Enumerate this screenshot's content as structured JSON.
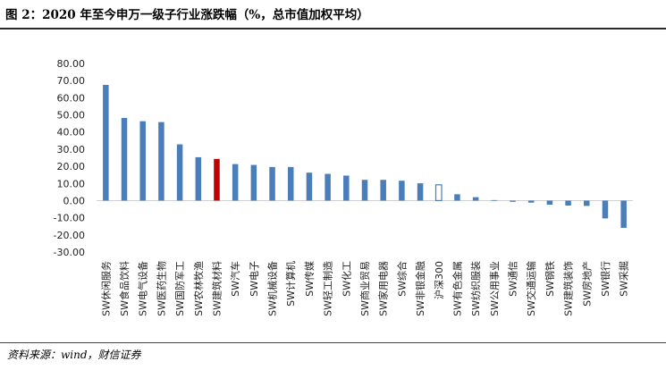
{
  "figure": {
    "title": "图 2：2020 年至今申万一级子行业涨跌幅（%，总市值加权平均）",
    "source": "资料来源：wind，财信证券"
  },
  "colors": {
    "default_bar": "#4a7ebb",
    "highlight_bar": "#c00000",
    "benchmark_outline": "#4a7ebb"
  },
  "chart_data": {
    "type": "bar",
    "title": "",
    "xlabel": "",
    "ylabel": "",
    "ylim": [
      -30,
      80
    ],
    "yticks": [
      "80.00",
      "70.00",
      "60.00",
      "50.00",
      "40.00",
      "30.00",
      "20.00",
      "10.00",
      "0.00",
      "-10.00",
      "-20.00",
      "-30.00"
    ],
    "grid": false,
    "legend": "none",
    "categories": [
      "SW休闲服务",
      "SW食品饮料",
      "SW电气设备",
      "SW医药生物",
      "SW国防军工",
      "SW农林牧渔",
      "SW建筑材料",
      "SW汽车",
      "SW电子",
      "SW机械设备",
      "SW计算机",
      "SW传媒",
      "SW轻工制造",
      "SW化工",
      "SW商业贸易",
      "SW家用电器",
      "SW综合",
      "SW非银金融",
      "沪深300",
      "SW有色金属",
      "SW纺织服装",
      "SW公用事业",
      "SW通信",
      "SW交通运输",
      "SW钢铁",
      "SW建筑装饰",
      "SW房地产",
      "SW银行",
      "SW采掘"
    ],
    "values": [
      67.5,
      48.2,
      46.3,
      45.8,
      32.8,
      25.3,
      24.3,
      21.3,
      20.8,
      19.6,
      19.6,
      16.3,
      15.6,
      14.6,
      12.1,
      12.1,
      11.6,
      10.1,
      9.2,
      3.7,
      2.0,
      0.3,
      -0.7,
      -1.2,
      -2.4,
      -2.9,
      -3.1,
      -10.4,
      -15.9
    ],
    "highlight_category": "SW建筑材料",
    "benchmark_category": "沪深300"
  }
}
